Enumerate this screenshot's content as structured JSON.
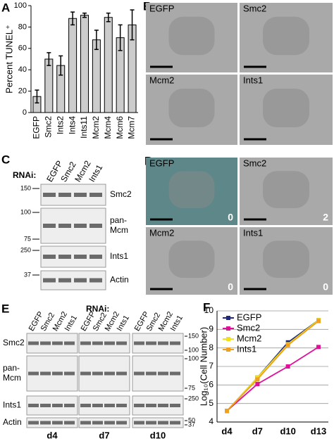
{
  "chart_data": [
    {
      "type": "bar",
      "ylabel": "Percent TUNEL⁺",
      "categories": [
        "EGFP",
        "Smc2",
        "Ints2",
        "Ints4",
        "Ints11",
        "Mcm2",
        "Mcm4",
        "Mcm6",
        "Mcm7"
      ],
      "values": [
        15,
        50,
        44,
        88,
        91,
        68,
        89,
        70,
        82
      ],
      "errors": [
        6,
        6,
        9,
        6,
        2,
        9,
        4,
        12,
        14
      ],
      "color": "#cccccc",
      "ylim": [
        0,
        100
      ],
      "yticks": [
        0,
        20,
        40,
        60,
        80,
        100
      ]
    },
    {
      "type": "line",
      "ylabel": "Log₁₀(Cell Number)",
      "categories": [
        "d4",
        "d7",
        "d10",
        "d13"
      ],
      "series": [
        {
          "name": "EGFP",
          "color": "#1f2a7a",
          "values": [
            4.6,
            6.4,
            8.3,
            9.5
          ]
        },
        {
          "name": "Smc2",
          "color": "#e0109a",
          "values": [
            4.6,
            6.05,
            7.0,
            8.05
          ]
        },
        {
          "name": "Mcm2",
          "color": "#f0e020",
          "values": [
            4.6,
            6.4,
            8.2,
            9.5
          ]
        },
        {
          "name": "Ints1",
          "color": "#f0a020",
          "values": [
            4.6,
            6.3,
            8.15,
            9.45
          ]
        }
      ],
      "ylim": [
        4,
        10
      ],
      "yticks": [
        4,
        5,
        6,
        7,
        8,
        9,
        10
      ],
      "grid": true,
      "legend": "upper-left"
    }
  ],
  "panel_labels": [
    "A",
    "B",
    "C",
    "D",
    "E",
    "F"
  ],
  "B": {
    "labels": [
      "EGFP",
      "Smc2",
      "Mcm2",
      "Ints1"
    ]
  },
  "C": {
    "rnai": "RNAi:",
    "lanes": [
      "EGFP",
      "Smc2",
      "Mcm2",
      "Ints1"
    ],
    "blots": [
      {
        "name": [
          "Smc2"
        ],
        "markers": [
          150
        ]
      },
      {
        "name": [
          "pan-",
          "Mcm"
        ],
        "markers": [
          100,
          75
        ]
      },
      {
        "name": [
          "Ints1"
        ],
        "markers": [
          250
        ]
      },
      {
        "name": [
          "Actin"
        ],
        "markers": [
          37
        ]
      }
    ]
  },
  "D": {
    "labels": [
      "EGFP",
      "Smc2",
      "Mcm2",
      "Ints1"
    ],
    "counts": [
      0,
      2,
      0,
      0
    ]
  },
  "E": {
    "rnai": "RNAi:",
    "lanes": [
      "EGFP",
      "Smc2",
      "Mcm2",
      "Ints1"
    ],
    "timepoints": [
      "d4",
      "d7",
      "d10"
    ],
    "blots": [
      {
        "name": [
          "Smc2"
        ],
        "markers": [
          150,
          100
        ]
      },
      {
        "name": [
          "pan-",
          "Mcm"
        ],
        "markers": [
          100,
          75
        ]
      },
      {
        "name": [
          "Ints1"
        ],
        "markers": [
          250
        ]
      },
      {
        "name": [
          "Actin"
        ],
        "markers": [
          50,
          37
        ]
      }
    ]
  }
}
